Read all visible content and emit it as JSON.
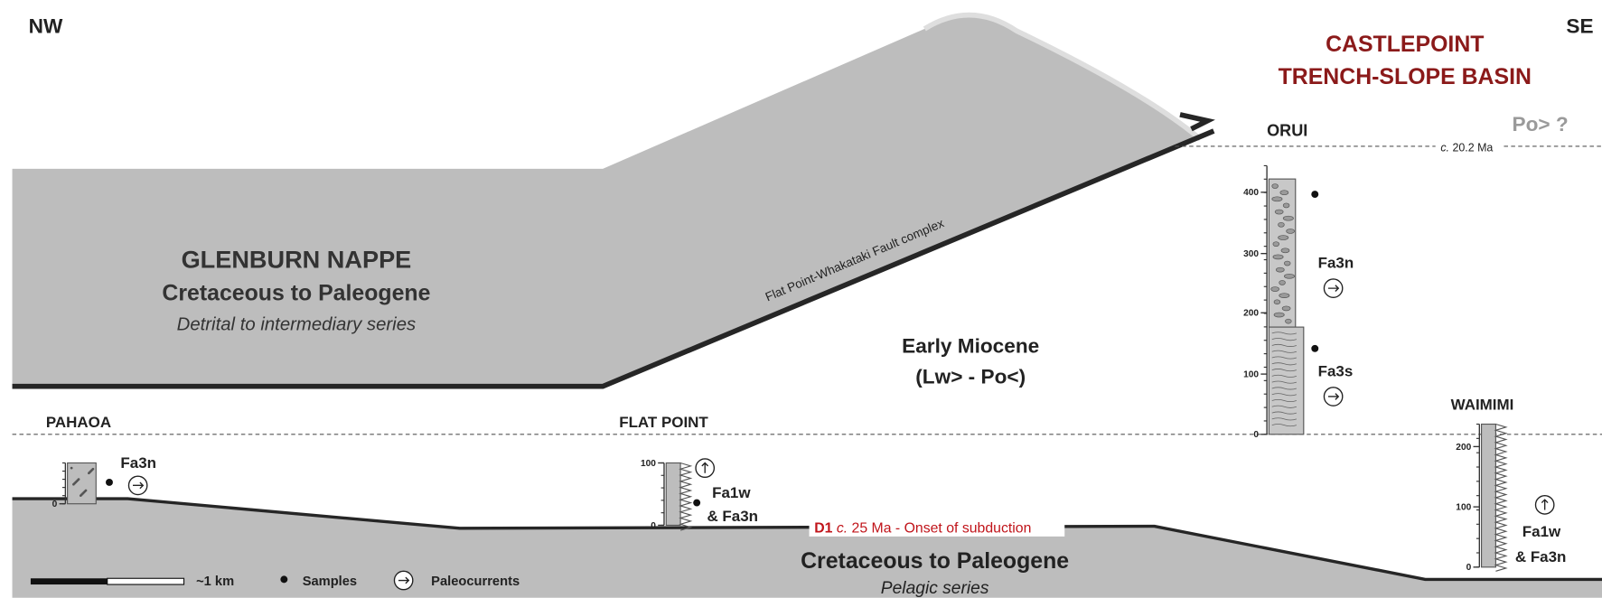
{
  "orientation": {
    "left": "NW",
    "right": "SE"
  },
  "basin": {
    "title_lines": [
      "CASTLEPOINT",
      "TRENCH-SLOPE BASIN"
    ],
    "top_unit": "Po> ?",
    "datum": {
      "prefix": "c.",
      "text": "20.2 Ma"
    }
  },
  "nappe": {
    "name": "GLENBURN NAPPE",
    "age": "Cretaceous to Paleogene",
    "series": "Detrital to intermediary series"
  },
  "fault": "Flat Point-Whakataki Fault complex",
  "miocene": {
    "age": "Early Miocene",
    "stages": "(Lw> - Po<)"
  },
  "basement": {
    "age": "Cretaceous to Paleogene",
    "series": "Pelagic series"
  },
  "event": {
    "code": "D1",
    "prefix": "c.",
    "text": "25 Ma - Onset of subduction"
  },
  "sections": [
    {
      "name": "PAHAOA",
      "ticks": [
        "0"
      ],
      "facies": [
        "Fa3n"
      ]
    },
    {
      "name": "FLAT POINT",
      "ticks": [
        "100",
        "0"
      ],
      "facies": [
        "Fa1w",
        "& Fa3n"
      ]
    },
    {
      "name": "ORUI",
      "ticks": [
        "400",
        "300",
        "200",
        "100",
        "0"
      ],
      "facies": [
        "Fa3n",
        "Fa3s"
      ]
    },
    {
      "name": "WAIMIMI",
      "ticks": [
        "200",
        "100",
        "0"
      ],
      "facies": [
        "Fa1w",
        "& Fa3n"
      ]
    }
  ],
  "legend": {
    "scale": "~1 km",
    "samples": "Samples",
    "paleocurrents": "Paleocurrents"
  }
}
